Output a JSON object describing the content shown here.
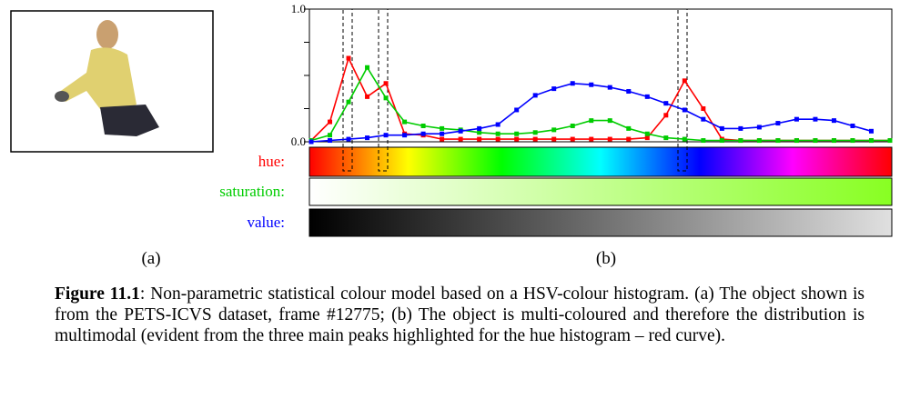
{
  "chart_data": {
    "type": "line",
    "ylim": [
      0,
      1
    ],
    "yticks": [
      {
        "value": 0,
        "label": "0.0"
      },
      {
        "value": 1,
        "label": "1.0"
      }
    ],
    "minor_yticks": [
      0.25,
      0.5,
      0.75
    ],
    "series": [
      {
        "name": "hue:",
        "color": "#ff0000",
        "values": [
          0.01,
          0.15,
          0.63,
          0.34,
          0.44,
          0.06,
          0.05,
          0.02,
          0.02,
          0.02,
          0.02,
          0.02,
          0.02,
          0.02,
          0.02,
          0.02,
          0.02,
          0.02,
          0.03,
          0.2,
          0.46,
          0.25,
          0.02,
          0.01,
          0.01,
          0.01,
          0.01,
          0.01,
          0.01,
          0.01,
          0.01,
          0.01
        ]
      },
      {
        "name": "saturation:",
        "color": "#00cc00",
        "values": [
          0.01,
          0.05,
          0.3,
          0.56,
          0.33,
          0.15,
          0.12,
          0.1,
          0.09,
          0.07,
          0.06,
          0.06,
          0.07,
          0.09,
          0.12,
          0.16,
          0.16,
          0.1,
          0.06,
          0.03,
          0.02,
          0.01,
          0.01,
          0.01,
          0.01,
          0.01,
          0.01,
          0.01,
          0.01,
          0.01,
          0.01,
          0.01
        ]
      },
      {
        "name": "value:",
        "color": "#0000ff",
        "values": [
          0.0,
          0.01,
          0.02,
          0.03,
          0.05,
          0.05,
          0.06,
          0.06,
          0.08,
          0.1,
          0.13,
          0.24,
          0.35,
          0.4,
          0.44,
          0.43,
          0.41,
          0.38,
          0.34,
          0.29,
          0.24,
          0.17,
          0.1,
          0.1,
          0.11,
          0.14,
          0.17,
          0.17,
          0.16,
          0.12,
          0.08,
          null
        ]
      }
    ]
  },
  "labels": {
    "a": "(a)",
    "b": "(b)"
  },
  "caption": {
    "label": "Figure 11.1",
    "text": ":   Non-parametric statistical colour model based on a HSV-colour histogram. (a) The object shown is from the PETS-ICVS dataset, frame #12775; (b) The object is multi-coloured and therefore the distribution is multimodal (evident from the three main peaks highlighted for the hue histogram – red curve)."
  }
}
